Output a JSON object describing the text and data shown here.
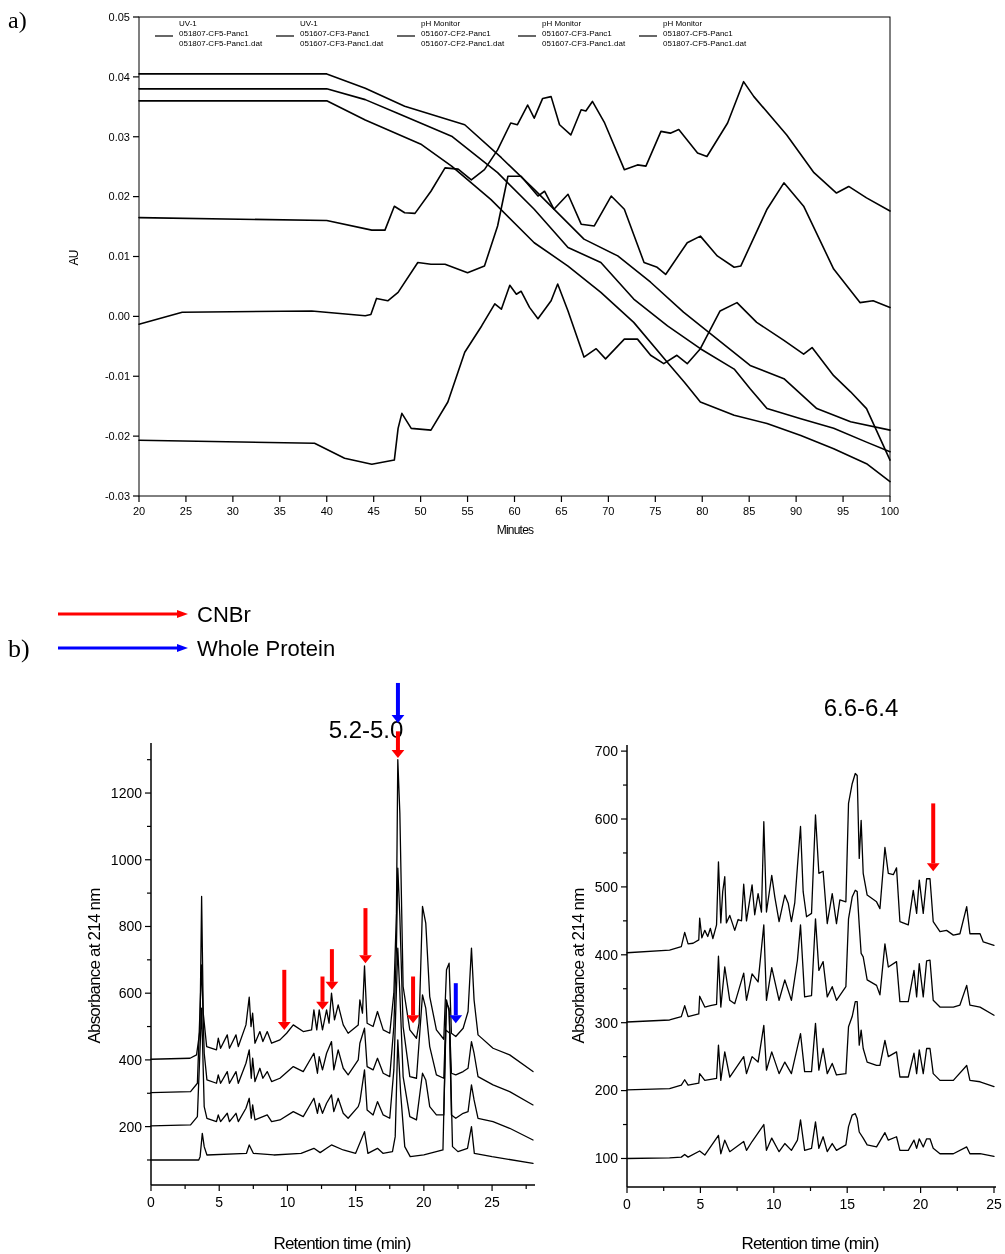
{
  "chart_data": [
    {
      "type": "line",
      "xlabel": "Minutes",
      "ylabel": "AU",
      "annotations": [
        "a)"
      ],
      "legend": "top",
      "xlim": [
        20,
        100
      ],
      "ylim": [
        -0.03,
        0.05
      ],
      "xticks": [
        20,
        25,
        30,
        35,
        40,
        45,
        50,
        55,
        60,
        65,
        70,
        75,
        80,
        85,
        90,
        95,
        100
      ],
      "yticks": [
        {
          "value": -0.03,
          "label": "-0.03"
        },
        {
          "value": -0.02,
          "label": "-0.02"
        },
        {
          "value": -0.01,
          "label": "-0.01"
        },
        {
          "value": 0,
          "label": "0.00"
        },
        {
          "value": 0.01,
          "label": "0.01"
        },
        {
          "value": 0.02,
          "label": "0.02"
        },
        {
          "value": 0.03,
          "label": "0.03"
        },
        {
          "value": 0.04,
          "label": "0.04"
        },
        {
          "value": 0.05,
          "label": "0.05"
        }
      ],
      "series": [
        {
          "name": "UV-1\n051807-CF5-Panc1\n051807-CF5-Panc1.dat",
          "color": "#000000",
          "x": [
            20,
            38.7,
            41.9,
            44.8,
            47.2,
            47.6,
            48,
            49,
            51.1,
            52.9,
            54.7,
            56.5,
            57.9,
            58.6,
            59.5,
            60.2,
            60.7,
            61.6,
            62.5,
            63.9,
            64.6,
            65.7,
            67.4,
            68.7,
            69.7,
            71.7,
            73.1,
            74.5,
            75.9,
            77.3,
            78.4,
            79.8,
            81.9,
            83.7,
            85.8,
            88.7,
            90.8,
            91.7,
            94,
            95.8,
            97.5,
            100
          ],
          "values": [
            -0.0207,
            -0.0212,
            -0.0237,
            -0.0247,
            -0.024,
            -0.0187,
            -0.0162,
            -0.0187,
            -0.019,
            -0.0143,
            -0.006,
            -0.0016,
            0.0021,
            0.0012,
            0.0052,
            0.0037,
            0.0042,
            0.0015,
            -0.0004,
            0.0026,
            0.0054,
            0.0009,
            -0.0068,
            -0.0054,
            -0.0071,
            -0.0038,
            -0.0038,
            -0.0065,
            -0.0079,
            -0.0065,
            -0.0079,
            -0.0054,
            0.0009,
            0.0023,
            -0.001,
            -0.004,
            -0.0063,
            -0.0052,
            -0.0099,
            -0.0126,
            -0.0154,
            -0.024
          ]
        },
        {
          "name": "UV-1\n051607-CF3-Panc1\n051607-CF3-Panc1.dat",
          "color": "#000000",
          "x": [
            20,
            40,
            44.8,
            46.2,
            47.2,
            48.3,
            49.4,
            51.1,
            52.6,
            54,
            55.4,
            56.8,
            58.2,
            59.6,
            60.3,
            61.4,
            62.1,
            63,
            63.9,
            64.8,
            66,
            67.1,
            67.6,
            68.3,
            69.6,
            71.7,
            73.1,
            74,
            75.6,
            76.6,
            77.5,
            79.5,
            80.5,
            82.7,
            84.4,
            85.5,
            89,
            91.9,
            94.3,
            95.6,
            97.5,
            100
          ],
          "values": [
            0.0165,
            0.016,
            0.0144,
            0.0144,
            0.0184,
            0.0173,
            0.0172,
            0.0209,
            0.0248,
            0.0246,
            0.0228,
            0.0245,
            0.0278,
            0.0323,
            0.032,
            0.0353,
            0.0331,
            0.0364,
            0.0367,
            0.032,
            0.0303,
            0.0345,
            0.0343,
            0.0359,
            0.0323,
            0.0245,
            0.0253,
            0.0251,
            0.0309,
            0.0306,
            0.0312,
            0.0273,
            0.0267,
            0.0323,
            0.0392,
            0.0367,
            0.0303,
            0.024,
            0.0206,
            0.0217,
            0.0198,
            0.0176
          ]
        },
        {
          "name": "pH Monitor\n051607-CF2-Panc1\n051607-CF2-Panc1.dat",
          "color": "#000000",
          "x": [
            20,
            40,
            44.1,
            48.3,
            54.7,
            58.6,
            62.1,
            67.4,
            71,
            74.5,
            78,
            81.6,
            85.1,
            88.7,
            92.2,
            95.8,
            100
          ],
          "values": [
            0.0405,
            0.0405,
            0.0381,
            0.0351,
            0.032,
            0.0265,
            0.0212,
            0.0129,
            0.0101,
            0.0057,
            0.0007,
            -0.0038,
            -0.0082,
            -0.0104,
            -0.0154,
            -0.0176,
            -0.019
          ]
        },
        {
          "name": "pH Monitor\n051607-CF3-Panc1\n051607-CF3-Panc1.dat",
          "color": "#000000",
          "x": [
            20,
            40,
            44.1,
            47.6,
            53.3,
            58.2,
            62.1,
            65.7,
            69.2,
            72.7,
            76.3,
            79.8,
            83.4,
            85.1,
            86.9,
            90.5,
            94,
            97.5,
            100
          ],
          "values": [
            0.038,
            0.038,
            0.0362,
            0.0339,
            0.0301,
            0.024,
            0.0179,
            0.0115,
            0.009,
            0.0029,
            -0.0016,
            -0.0054,
            -0.0088,
            -0.0121,
            -0.0154,
            -0.0171,
            -0.0187,
            -0.021,
            -0.0226
          ]
        },
        {
          "name": "pH Monitor\n051807-CF5-Panc1\n051807-CF5-Panc1.dat",
          "color": "#000000",
          "x": [
            20,
            40,
            44.1,
            50.1,
            53.3,
            57.5,
            62.1,
            65.7,
            69.2,
            72.7,
            76.3,
            78.1,
            79.8,
            83.4,
            86.9,
            90.5,
            94,
            97.5,
            100
          ],
          "values": [
            0.036,
            0.036,
            0.0328,
            0.0287,
            0.0251,
            0.0195,
            0.0123,
            0.0084,
            0.004,
            -0.001,
            -0.0077,
            -0.011,
            -0.0143,
            -0.0165,
            -0.0179,
            -0.0199,
            -0.0221,
            -0.0246,
            -0.0276
          ]
        },
        {
          "color": "#000000",
          "x": [
            20,
            24.6,
            38.4,
            44.1,
            44.7,
            45.3,
            46.5,
            47.6,
            49.7,
            51.1,
            52.6,
            55,
            56.8,
            58.2,
            59.3,
            60.7,
            62.5,
            63.2,
            64.2,
            65.7,
            67.1,
            68.5,
            70.3,
            71.7,
            73.8,
            75.2,
            76.1,
            78.4,
            79.8,
            81.6,
            83.4,
            84.1,
            86.9,
            88.7,
            90.8,
            94,
            96.8,
            98.2,
            100
          ],
          "values": [
            -0.0013,
            0.0007,
            0.0009,
            0.0001,
            0.0003,
            0.003,
            0.0026,
            0.004,
            0.009,
            0.0087,
            0.0087,
            0.0073,
            0.0084,
            0.0151,
            0.0234,
            0.0234,
            0.0201,
            0.0209,
            0.0179,
            0.0204,
            0.0154,
            0.0151,
            0.0201,
            0.0179,
            0.009,
            0.0082,
            0.007,
            0.0123,
            0.0134,
            0.0101,
            0.0082,
            0.0084,
            0.0179,
            0.0223,
            0.0184,
            0.0079,
            0.0023,
            0.0026,
            0.0015
          ]
        }
      ]
    },
    {
      "type": "line",
      "title": "5.2-5.0",
      "xlabel": "Retention time (min)",
      "ylabel": "Absorbance at 214 nm",
      "annotations": [
        "b)",
        "CNBr",
        "Whole Protein"
      ],
      "xlim": [
        0,
        28
      ],
      "ylim": [
        25,
        1350
      ],
      "xticks": [
        0,
        {
          "value": 2.5,
          "label": null
        },
        5,
        {
          "value": 7.5,
          "label": null
        },
        10,
        {
          "value": 12.5,
          "label": null
        },
        15,
        {
          "value": 17.5,
          "label": null
        },
        20,
        {
          "value": 22.5,
          "label": null
        },
        25,
        {
          "value": 27.5,
          "label": null
        }
      ],
      "yticks": [
        {
          "value": 100,
          "label": null
        },
        200,
        {
          "value": 300,
          "label": null
        },
        400,
        {
          "value": 500,
          "label": null
        },
        600,
        {
          "value": 700,
          "label": null
        },
        800,
        {
          "value": 900,
          "label": null
        },
        1000,
        {
          "value": 1100,
          "label": null
        },
        1200,
        {
          "value": 1300,
          "label": null
        }
      ],
      "series": [
        {
          "color": "#000000",
          "x": [
            0,
            2.86,
            3.34,
            3.59,
            3.71,
            3.83,
            4.08,
            4.8,
            4.93,
            5.1,
            5.59,
            5.75,
            6.23,
            6.4,
            6.96,
            7.2,
            7.33,
            7.45,
            7.62,
            7.98,
            8.2,
            8.52,
            8.84,
            9.45,
            9.94,
            10.43,
            11.16,
            11.77,
            11.94,
            12.15,
            12.33,
            12.57,
            12.87,
            13.05,
            13.23,
            13.45,
            13.72,
            14.09,
            14.45,
            15.19,
            15.31,
            15.5,
            15.65,
            15.84,
            16.28,
            16.6,
            17.02,
            17.5,
            17.8,
            17.99,
            18.09,
            18.24,
            18.48,
            18.97,
            19.46,
            19.65,
            19.9,
            20.14,
            20.43,
            20.92,
            21.46,
            21.66,
            21.85,
            22.02,
            22.34,
            22.88,
            23.24,
            23.49,
            23.68,
            23.97,
            25.07,
            26.29,
            28
          ],
          "values": [
            402,
            405,
            415,
            490,
            890,
            540,
            440,
            430,
            465,
            435,
            475,
            435,
            475,
            440,
            505,
            588,
            500,
            540,
            450,
            485,
            455,
            485,
            450,
            460,
            480,
            505,
            485,
            490,
            550,
            490,
            550,
            490,
            550,
            510,
            600,
            520,
            565,
            505,
            480,
            505,
            580,
            540,
            682,
            510,
            500,
            545,
            490,
            480,
            600,
            840,
            1300,
            1140,
            620,
            490,
            465,
            510,
            860,
            810,
            590,
            490,
            462,
            670,
            690,
            480,
            470,
            495,
            545,
            735,
            580,
            475,
            435,
            415,
            365
          ]
        },
        {
          "color": "#000000",
          "x": [
            0,
            2.9,
            3.4,
            3.71,
            3.9,
            4.1,
            4.8,
            4.93,
            5.1,
            5.59,
            5.75,
            6.23,
            6.4,
            6.96,
            7.2,
            7.35,
            7.45,
            7.62,
            7.98,
            8.2,
            8.52,
            8.84,
            9.45,
            10.43,
            11.16,
            11.94,
            12.2,
            12.33,
            12.57,
            12.87,
            13.23,
            13.4,
            13.72,
            14.09,
            14.45,
            15.19,
            15.31,
            15.65,
            15.84,
            16.28,
            16.6,
            17.02,
            17.5,
            17.8,
            17.99,
            18.09,
            18.24,
            18.48,
            18.97,
            19.46,
            19.9,
            20.14,
            20.43,
            20.92,
            21.46,
            21.66,
            21.85,
            22.02,
            22.34,
            22.88,
            23.24,
            23.49,
            23.68,
            23.97,
            25.07,
            26.29,
            28
          ],
          "values": [
            302,
            305,
            330,
            685,
            420,
            340,
            330,
            355,
            330,
            365,
            330,
            365,
            330,
            390,
            430,
            345,
            405,
            335,
            375,
            345,
            365,
            335,
            345,
            380,
            365,
            420,
            360,
            410,
            370,
            420,
            455,
            370,
            430,
            375,
            355,
            400,
            450,
            495,
            380,
            370,
            405,
            360,
            350,
            500,
            735,
            975,
            830,
            500,
            350,
            345,
            595,
            555,
            440,
            355,
            345,
            580,
            545,
            360,
            355,
            365,
            375,
            455,
            420,
            350,
            325,
            305,
            265
          ]
        },
        {
          "color": "#000000",
          "x": [
            0,
            2.9,
            3.4,
            3.71,
            3.9,
            4.1,
            4.8,
            4.93,
            5.1,
            5.59,
            5.75,
            6.23,
            6.4,
            6.96,
            7.2,
            7.35,
            7.45,
            7.62,
            8.52,
            8.84,
            9.45,
            10.43,
            11.16,
            11.94,
            12.2,
            12.33,
            12.57,
            12.87,
            13.23,
            13.4,
            13.72,
            14.09,
            14.45,
            15.19,
            15.31,
            15.65,
            15.84,
            16.28,
            16.6,
            17.02,
            17.5,
            17.8,
            17.99,
            18.09,
            18.24,
            18.48,
            18.97,
            19.46,
            19.9,
            20.14,
            20.43,
            20.92,
            21.46,
            21.66,
            21.85,
            22.02,
            22.34,
            22.88,
            23.24,
            23.49,
            23.68,
            23.97,
            25.07,
            26.29,
            28
          ],
          "values": [
            202,
            205,
            230,
            555,
            260,
            225,
            215,
            235,
            215,
            240,
            215,
            240,
            215,
            255,
            285,
            225,
            265,
            220,
            235,
            215,
            220,
            245,
            230,
            285,
            240,
            270,
            240,
            270,
            295,
            245,
            285,
            240,
            225,
            260,
            275,
            370,
            250,
            235,
            275,
            235,
            225,
            370,
            610,
            735,
            600,
            350,
            230,
            220,
            360,
            340,
            260,
            235,
            235,
            570,
            555,
            235,
            225,
            240,
            245,
            325,
            280,
            225,
            215,
            195,
            160
          ]
        },
        {
          "color": "#000000",
          "x": [
            0,
            3.5,
            3.6,
            3.76,
            3.9,
            4.1,
            7,
            7.2,
            7.5,
            9,
            11,
            11.94,
            12.4,
            12.87,
            13.23,
            14.09,
            15,
            15.65,
            15.9,
            16.6,
            17,
            17.7,
            17.9,
            18.09,
            18.3,
            18.6,
            19,
            20,
            21.4,
            21.6,
            21.9,
            22.1,
            22.5,
            23.2,
            23.49,
            23.7,
            25,
            28
          ],
          "values": [
            100,
            100,
            110,
            180,
            140,
            115,
            120,
            145,
            120,
            115,
            120,
            135,
            122,
            135,
            145,
            130,
            120,
            185,
            120,
            135,
            120,
            125,
            170,
            460,
            300,
            140,
            110,
            115,
            130,
            490,
            480,
            140,
            125,
            135,
            200,
            120,
            110,
            90
          ]
        }
      ]
    },
    {
      "type": "line",
      "title": "6.6-6.4",
      "xlabel": "Retention time (min)",
      "ylabel": "Absorbance at 214 nm",
      "xlim": [
        0,
        25
      ],
      "ylim": [
        58,
        709
      ],
      "xticks": [
        0,
        {
          "value": 2.5,
          "label": null
        },
        5,
        {
          "value": 7.5,
          "label": null
        },
        10,
        {
          "value": 12.5,
          "label": null
        },
        15,
        {
          "value": 17.5,
          "label": null
        },
        20,
        {
          "value": 22.5,
          "label": null
        },
        25
      ],
      "yticks": [
        100,
        {
          "value": 150,
          "label": null
        },
        200,
        {
          "value": 250,
          "label": null
        },
        300,
        {
          "value": 350,
          "label": null
        },
        400,
        {
          "value": 450,
          "label": null
        },
        500,
        {
          "value": 550,
          "label": null
        },
        600,
        {
          "value": 650,
          "label": null
        },
        700
      ],
      "series": [
        {
          "color": "#000000",
          "x": [
            0,
            2.9,
            3.7,
            3.93,
            4.16,
            4.5,
            4.89,
            4.95,
            5.1,
            5.3,
            5.5,
            5.68,
            5.85,
            6.1,
            6.23,
            6.39,
            6.52,
            6.66,
            6.77,
            7,
            7.34,
            7.57,
            7.8,
            7.95,
            8.14,
            8.52,
            8.7,
            8.93,
            9.16,
            9.32,
            9.5,
            9.86,
            10.07,
            10.36,
            10.75,
            10.98,
            11.2,
            11.43,
            11.61,
            11.82,
            12,
            12.23,
            12.57,
            12.84,
            13.07,
            13.36,
            13.64,
            13.98,
            14.27,
            14.5,
            14.91,
            15.09,
            15.34,
            15.55,
            15.68,
            15.82,
            15.95,
            16.09,
            16.36,
            17,
            17.23,
            17.57,
            17.8,
            18.14,
            18.36,
            18.59,
            19.16,
            19.5,
            19.73,
            19.91,
            20.18,
            20.41,
            20.64,
            20.86,
            21.32,
            21.77,
            22.23,
            22.68,
            23.14,
            23.36,
            24.05,
            24.27,
            25
          ],
          "values": [
            403,
            407,
            412,
            433,
            416,
            417,
            422,
            454,
            425,
            436,
            427,
            439,
            424,
            444,
            537,
            447,
            493,
            515,
            447,
            458,
            436,
            452,
            450,
            504,
            450,
            503,
            459,
            490,
            463,
            596,
            463,
            517,
            485,
            449,
            488,
            476,
            449,
            477,
            530,
            589,
            493,
            456,
            461,
            606,
            520,
            523,
            446,
            490,
            446,
            481,
            478,
            623,
            652,
            667,
            664,
            542,
            598,
            520,
            488,
            478,
            468,
            558,
            520,
            518,
            528,
            449,
            444,
            495,
            461,
            510,
            461,
            512,
            512,
            449,
            434,
            436,
            429,
            431,
            471,
            431,
            431,
            419,
            414
          ]
        },
        {
          "color": "#000000",
          "x": [
            0,
            2.9,
            3.7,
            3.93,
            4.16,
            4.89,
            4.95,
            5.3,
            5.68,
            6.1,
            6.23,
            6.39,
            6.66,
            7,
            7.34,
            7.95,
            8.14,
            8.52,
            8.93,
            9.32,
            9.5,
            9.86,
            10.36,
            10.75,
            11.2,
            11.61,
            11.82,
            12.1,
            12.57,
            12.84,
            13.07,
            13.36,
            13.64,
            13.98,
            14.27,
            14.91,
            15.09,
            15.34,
            15.55,
            15.68,
            15.82,
            15.95,
            16.09,
            16.36,
            17,
            17.23,
            17.57,
            17.8,
            18.36,
            18.59,
            19.16,
            19.55,
            19.73,
            19.91,
            20.18,
            20.41,
            20.64,
            20.86,
            21.32,
            22.23,
            22.68,
            23.14,
            23.36,
            24.05,
            25
          ],
          "values": [
            301,
            304,
            309,
            325,
            309,
            313,
            339,
            323,
            325,
            327,
            398,
            323,
            382,
            333,
            328,
            373,
            333,
            372,
            360,
            444,
            333,
            381,
            333,
            363,
            333,
            392,
            444,
            338,
            340,
            453,
            377,
            390,
            338,
            353,
            333,
            353,
            453,
            485,
            495,
            493,
            444,
            402,
            397,
            363,
            355,
            341,
            416,
            382,
            390,
            331,
            331,
            377,
            338,
            387,
            338,
            391,
            392,
            333,
            323,
            323,
            326,
            355,
            326,
            323,
            311
          ]
        },
        {
          "color": "#000000",
          "x": [
            0,
            2.9,
            3.7,
            3.93,
            4.16,
            4.89,
            4.95,
            5.3,
            6.1,
            6.23,
            6.39,
            6.66,
            7,
            7.95,
            8.14,
            8.52,
            8.93,
            9.32,
            9.5,
            9.86,
            10.36,
            10.75,
            11.2,
            11.61,
            11.82,
            12.1,
            12.57,
            12.84,
            13.07,
            13.36,
            13.64,
            13.98,
            14.27,
            14.91,
            15.09,
            15.34,
            15.55,
            15.68,
            15.82,
            15.95,
            16.09,
            16.36,
            17,
            17.23,
            17.57,
            17.8,
            18.36,
            18.59,
            19.16,
            19.55,
            19.73,
            19.91,
            20.18,
            20.41,
            20.64,
            20.86,
            21.32,
            22.23,
            23.14,
            23.36,
            24.05,
            25
          ],
          "values": [
            201,
            203,
            208,
            216,
            208,
            211,
            225,
            215,
            218,
            267,
            215,
            257,
            220,
            250,
            225,
            250,
            242,
            296,
            230,
            257,
            225,
            242,
            225,
            264,
            284,
            228,
            228,
            299,
            230,
            262,
            225,
            240,
            223,
            225,
            294,
            309,
            331,
            331,
            267,
            289,
            262,
            242,
            237,
            237,
            274,
            250,
            257,
            220,
            220,
            255,
            225,
            260,
            225,
            262,
            262,
            225,
            215,
            215,
            237,
            215,
            213,
            206
          ]
        },
        {
          "color": "#000000",
          "x": [
            0,
            2.9,
            3.7,
            3.93,
            4.16,
            4.95,
            5.3,
            6.23,
            6.39,
            6.66,
            7,
            7.95,
            8.14,
            8.52,
            9.32,
            9.5,
            9.86,
            10.36,
            10.75,
            11.2,
            11.61,
            11.82,
            12.1,
            12.57,
            12.84,
            13.07,
            13.36,
            13.64,
            13.98,
            14.27,
            14.91,
            15.09,
            15.34,
            15.55,
            15.68,
            15.82,
            16.09,
            16.36,
            17,
            17.57,
            17.8,
            18.36,
            18.59,
            19.16,
            19.55,
            19.73,
            19.91,
            20.18,
            20.41,
            20.64,
            20.86,
            21.32,
            22.23,
            23.14,
            23.36,
            24.05,
            25
          ],
          "values": [
            100,
            101,
            102,
            106,
            102,
            111,
            105,
            134,
            107,
            127,
            110,
            125,
            112,
            125,
            150,
            112,
            130,
            110,
            122,
            112,
            127,
            157,
            112,
            115,
            154,
            115,
            132,
            110,
            122,
            112,
            120,
            147,
            164,
            166,
            159,
            139,
            130,
            120,
            117,
            138,
            127,
            132,
            112,
            112,
            127,
            115,
            129,
            117,
            129,
            129,
            115,
            107,
            107,
            117,
            107,
            107,
            103
          ]
        }
      ]
    }
  ]
}
